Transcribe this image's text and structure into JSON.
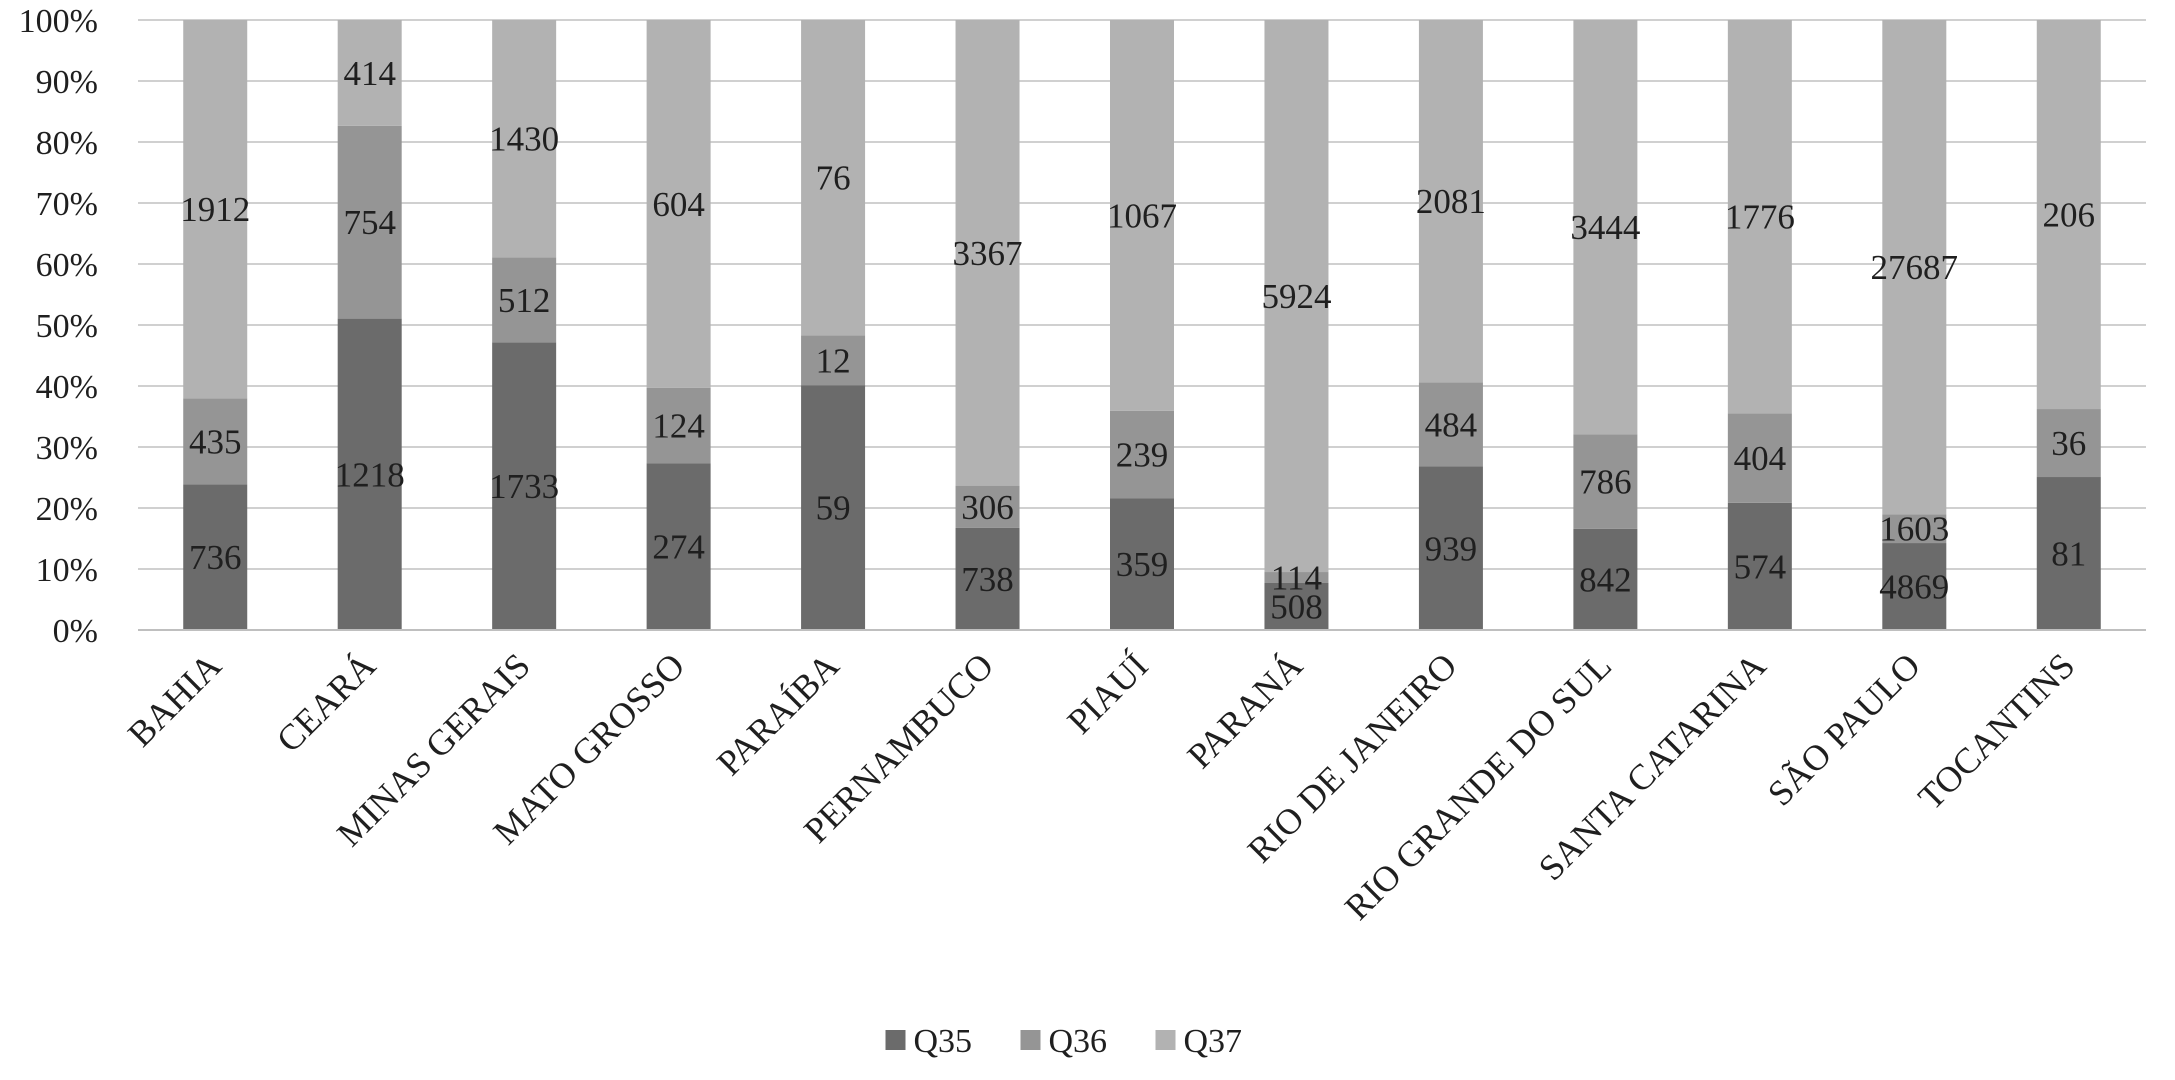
{
  "chart_data": {
    "type": "bar",
    "stacking": "percent",
    "categories": [
      "BAHIA",
      "CEARÁ",
      "MINAS GERAIS",
      "MATO GROSSO",
      "PARAÍBA",
      "PERNAMBUCO",
      "PIAUÍ",
      "PARANÁ",
      "RIO DE JANEIRO",
      "RIO GRANDE DO SUL",
      "SANTA CATARINA",
      "SÃO PAULO",
      "TOCANTINS"
    ],
    "series": [
      {
        "name": "Q35",
        "color": "#6b6b6b",
        "values": [
          736,
          1218,
          1733,
          274,
          59,
          738,
          359,
          508,
          939,
          842,
          574,
          4869,
          81
        ]
      },
      {
        "name": "Q36",
        "color": "#959595",
        "values": [
          435,
          754,
          512,
          124,
          12,
          306,
          239,
          114,
          484,
          786,
          404,
          1603,
          36
        ]
      },
      {
        "name": "Q37",
        "color": "#b2b2b2",
        "values": [
          1912,
          414,
          1430,
          604,
          76,
          3367,
          1067,
          5924,
          2081,
          3444,
          1776,
          27687,
          206
        ]
      }
    ],
    "y_ticks": [
      "0%",
      "10%",
      "20%",
      "30%",
      "40%",
      "50%",
      "60%",
      "70%",
      "80%",
      "90%",
      "100%"
    ],
    "ylim": [
      0,
      100
    ],
    "grid": true,
    "legend_position": "bottom",
    "title": "",
    "xlabel": "",
    "ylabel": ""
  }
}
